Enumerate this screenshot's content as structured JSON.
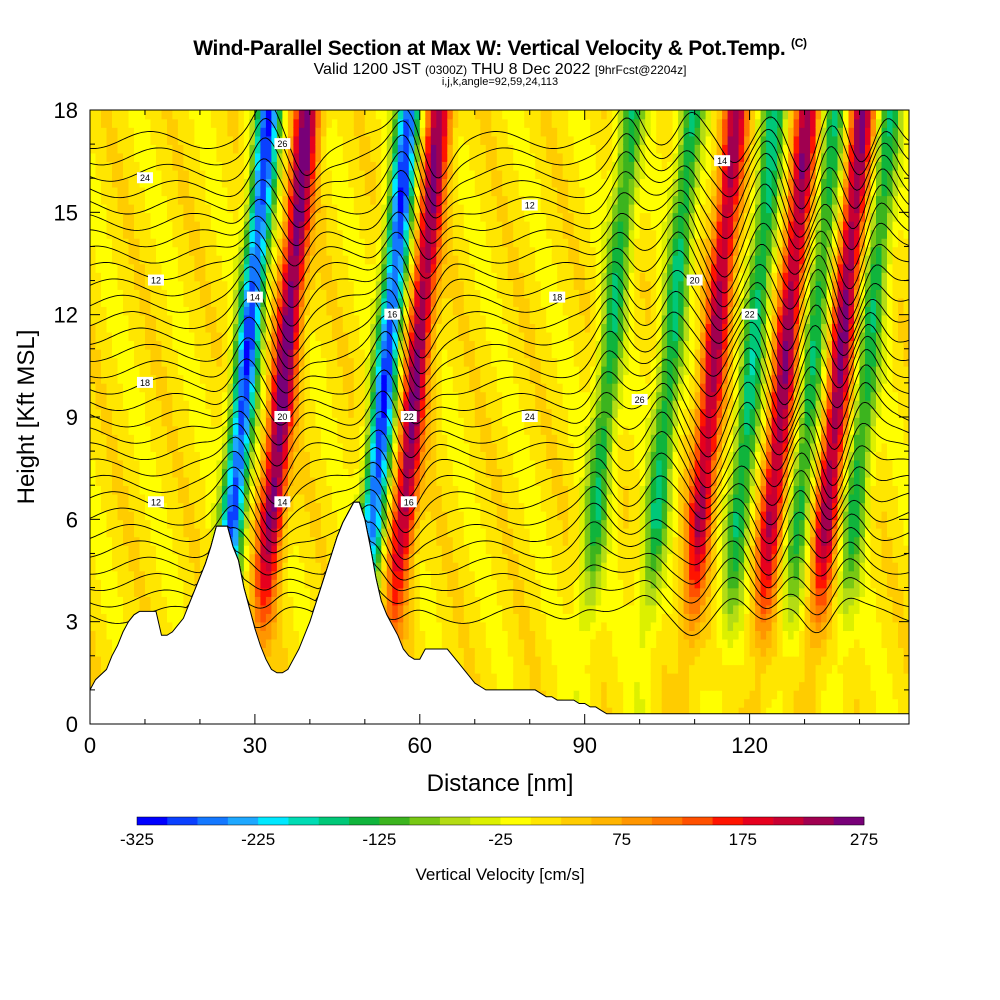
{
  "header": {
    "title": "Wind-Parallel Section at Max W: Vertical Velocity & Pot.Temp.",
    "copyright": "(C)",
    "valid_main": "Valid 1200 JST",
    "valid_z": "(0300Z)",
    "valid_date": "THU 8 Dec 2022",
    "fcst": "[9hrFcst@2204z]",
    "indices": "i,j,k,angle=92,59,24,113"
  },
  "chart_data": {
    "type": "heatmap",
    "xlabel": "Distance [nm]",
    "ylabel": "Height [Kft MSL]",
    "xlim": [
      0,
      149
    ],
    "ylim": [
      0,
      18
    ],
    "xticks": [
      "0",
      "30",
      "60",
      "90",
      "120"
    ],
    "yticks": [
      "0",
      "3",
      "6",
      "9",
      "12",
      "15",
      "18"
    ],
    "colorbar": {
      "label": "Vertical Velocity [cm/s]",
      "ticks": [
        "-325",
        "-225",
        "-125",
        "-25",
        "75",
        "175",
        "275"
      ],
      "min": -325,
      "max": 275,
      "step": 25,
      "colors": [
        "#0000ff",
        "#0a40ff",
        "#1478ff",
        "#1ea8ff",
        "#00e8ff",
        "#00dcb4",
        "#00c878",
        "#10b43c",
        "#3cb41e",
        "#78c814",
        "#b4dc14",
        "#dcf000",
        "#ffff00",
        "#ffe600",
        "#ffcc00",
        "#ffb400",
        "#ff9600",
        "#ff7800",
        "#ff5000",
        "#ff1400",
        "#e6001e",
        "#c80032",
        "#a00050",
        "#780078"
      ]
    },
    "theta_contour_labels": [
      "12",
      "14",
      "16",
      "18",
      "20",
      "22",
      "24",
      "26"
    ],
    "w_plumes": [
      {
        "x": 26,
        "amp": -300
      },
      {
        "x": 33,
        "amp": 260
      },
      {
        "x": 51.5,
        "amp": -300
      },
      {
        "x": 57,
        "amp": 240
      },
      {
        "x": 92,
        "amp": -150
      },
      {
        "x": 103,
        "amp": -160
      },
      {
        "x": 111,
        "amp": 220
      },
      {
        "x": 118,
        "amp": -170
      },
      {
        "x": 124,
        "amp": 230
      },
      {
        "x": 129,
        "amp": -150
      },
      {
        "x": 134,
        "amp": 240
      },
      {
        "x": 139,
        "amp": -150
      }
    ],
    "terrain": {
      "x": [
        0,
        1,
        3,
        4,
        5,
        6,
        7,
        8,
        9,
        10,
        11,
        12,
        13,
        14,
        15,
        16,
        17,
        18,
        19,
        20,
        21,
        22,
        23,
        24,
        25,
        26,
        27,
        28,
        29,
        30,
        31,
        32,
        33,
        34,
        35,
        36,
        37,
        38,
        39,
        40,
        41,
        42,
        43,
        44,
        45,
        46,
        47,
        48,
        49,
        50,
        51,
        52,
        53,
        54,
        55,
        56,
        57,
        58,
        59,
        60,
        61,
        62,
        63,
        64,
        65,
        66,
        67,
        68,
        69,
        70,
        71,
        72,
        73,
        74,
        75,
        76,
        77,
        78,
        79,
        80,
        81,
        82,
        83,
        84,
        85,
        86,
        87,
        88,
        89,
        90,
        91,
        92,
        93,
        94,
        95,
        96,
        97,
        98,
        99,
        100,
        149
      ],
      "h": [
        1.0,
        1.3,
        1.6,
        2.0,
        2.3,
        2.7,
        3.0,
        3.2,
        3.3,
        3.3,
        3.3,
        3.3,
        2.6,
        2.6,
        2.7,
        2.9,
        3.1,
        3.5,
        3.9,
        4.3,
        4.7,
        5.2,
        5.8,
        5.8,
        5.8,
        5.2,
        4.8,
        4.0,
        3.4,
        2.8,
        2.3,
        1.9,
        1.6,
        1.5,
        1.5,
        1.6,
        1.9,
        2.2,
        2.6,
        3.0,
        3.5,
        4.0,
        4.5,
        5.0,
        5.5,
        5.9,
        6.2,
        6.5,
        6.5,
        6.0,
        5.2,
        4.3,
        3.6,
        3.2,
        2.9,
        2.6,
        2.2,
        2.0,
        1.9,
        1.9,
        2.2,
        2.2,
        2.2,
        2.2,
        2.2,
        2.0,
        1.8,
        1.6,
        1.4,
        1.2,
        1.1,
        1.0,
        1.0,
        1.0,
        1.0,
        1.0,
        1.0,
        1.0,
        1.0,
        1.0,
        1.0,
        0.9,
        0.8,
        0.8,
        0.7,
        0.7,
        0.7,
        0.7,
        0.6,
        0.6,
        0.5,
        0.5,
        0.4,
        0.3,
        0.3,
        0.3,
        0.3,
        0.3,
        0.3,
        0.3,
        0.3
      ]
    }
  }
}
